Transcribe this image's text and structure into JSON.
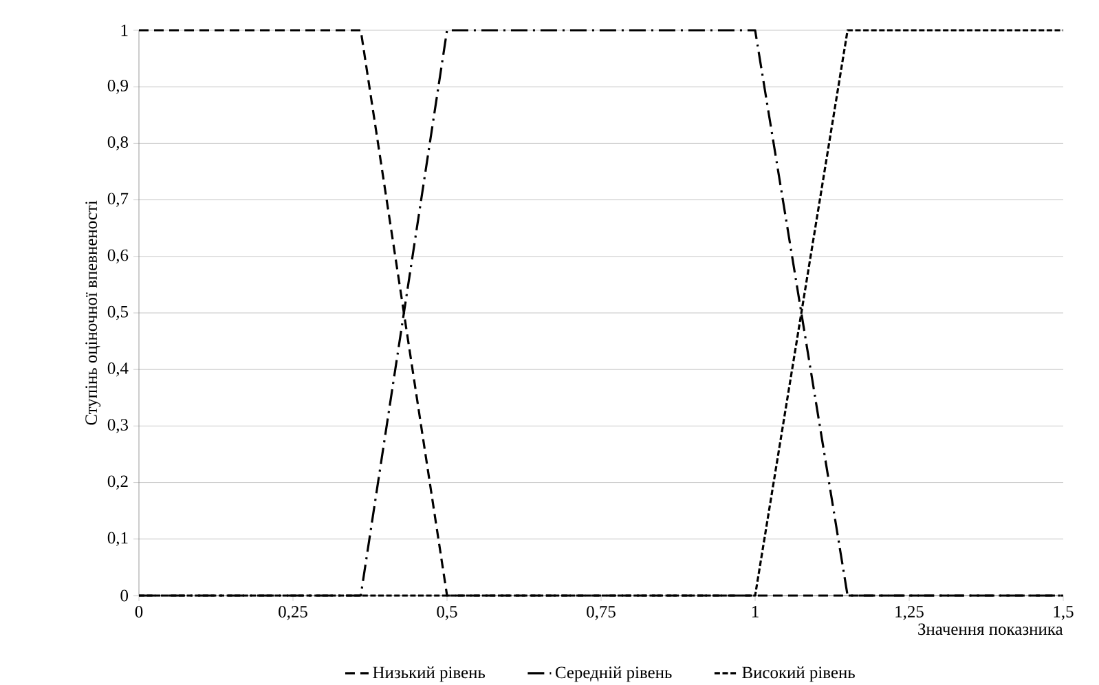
{
  "chart_data": {
    "type": "line",
    "xlabel": "Значення показника",
    "ylabel": "Ступінь оціночної впевненості",
    "xlim": [
      0,
      1.5
    ],
    "ylim": [
      0,
      1
    ],
    "xticks": [
      0,
      {
        "value": 0.25,
        "label": "0,25"
      },
      {
        "value": 0.5,
        "label": "0,5"
      },
      {
        "value": 0.75,
        "label": "0,75"
      },
      1,
      {
        "value": 1.25,
        "label": "1,25"
      },
      {
        "value": 1.5,
        "label": "1,5"
      }
    ],
    "yticks": [
      0,
      {
        "value": 0.1,
        "label": "0,1"
      },
      {
        "value": 0.2,
        "label": "0,2"
      },
      {
        "value": 0.3,
        "label": "0,3"
      },
      {
        "value": 0.4,
        "label": "0,4"
      },
      {
        "value": 0.5,
        "label": "0,5"
      },
      {
        "value": 0.6,
        "label": "0,6"
      },
      {
        "value": 0.7,
        "label": "0,7"
      },
      {
        "value": 0.8,
        "label": "0,8"
      },
      {
        "value": 0.9,
        "label": "0,9"
      },
      1
    ],
    "grid": "y",
    "legend": "bottom",
    "marker": "none",
    "series": [
      {
        "name": "Низький рівень",
        "color": "#000000",
        "line_style": "dashed",
        "x": [
          0,
          0.36,
          0.5,
          1.5
        ],
        "values": [
          1,
          1,
          0,
          0
        ]
      },
      {
        "name": "Середній рівень",
        "color": "#000000",
        "line_style": "dashdot",
        "x": [
          0,
          0.36,
          0.5,
          1.0,
          1.15,
          1.5
        ],
        "values": [
          0,
          0,
          1,
          1,
          0,
          0
        ]
      },
      {
        "name": "Високий рівень",
        "color": "#000000",
        "line_style": "dotted",
        "x": [
          0,
          1.0,
          1.15,
          1.5
        ],
        "values": [
          0,
          0,
          1,
          1
        ]
      }
    ]
  }
}
